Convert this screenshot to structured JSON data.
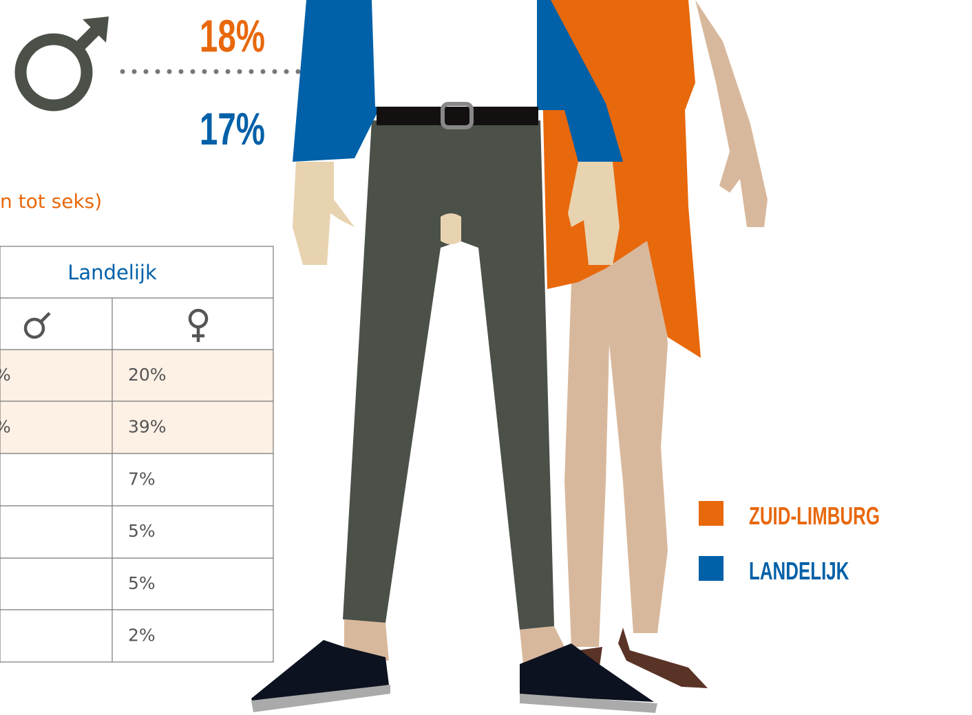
{
  "male_percentages": {
    "zuid_limburg": "18%",
    "landelijk": "17%"
  },
  "subtitle_fragment": "n tot seks)",
  "table": {
    "header": "Landelijk",
    "male_column": [
      "%",
      "%"
    ],
    "female_column": [
      "20%",
      "39%",
      "7%",
      "5%",
      "5%",
      "2%"
    ]
  },
  "legend": [
    "ZUID-LIMBURG",
    "LANDELIJK"
  ]
}
